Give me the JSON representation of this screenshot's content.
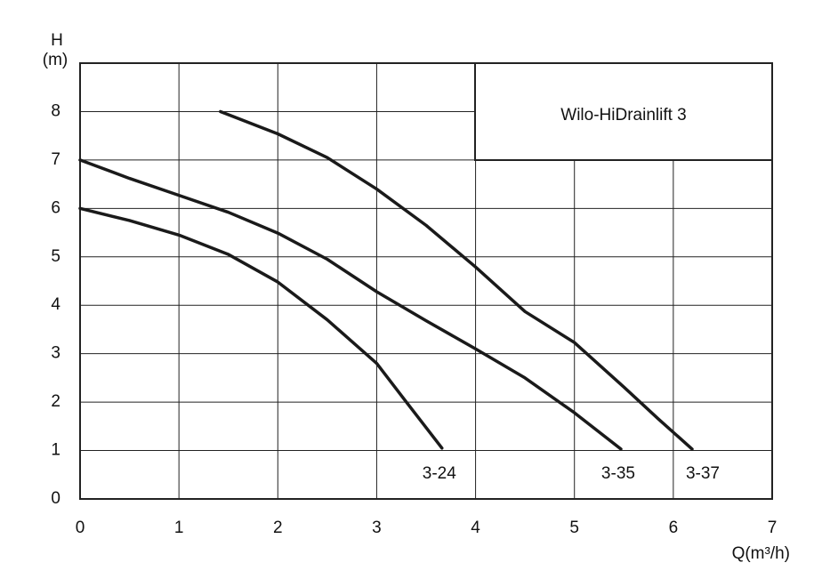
{
  "chart_data": {
    "type": "line",
    "title": "Wilo-HiDrainlift 3",
    "xlabel": "Q(m³/h)",
    "ylabel": [
      "H",
      "(m)"
    ],
    "xlim": [
      0,
      7
    ],
    "xticks": [
      0,
      1,
      2,
      3,
      4,
      5,
      6,
      7
    ],
    "ylim": [
      0,
      9
    ],
    "yticks": [
      0,
      1,
      2,
      3,
      4,
      5,
      6,
      7,
      8
    ],
    "grid": true,
    "series": [
      {
        "name": "3-24",
        "color": "#1a1a1a",
        "x": [
          0,
          0.5,
          1,
          1.5,
          2,
          2.5,
          3,
          3.3,
          3.66
        ],
        "values": [
          6,
          5.75,
          5.45,
          5.05,
          4.48,
          3.7,
          2.8,
          2.0,
          1.05
        ]
      },
      {
        "name": "3-35",
        "color": "#1a1a1a",
        "x": [
          0,
          0.5,
          1,
          1.5,
          2,
          2.5,
          3,
          3.5,
          4,
          4.5,
          5,
          5.47
        ],
        "values": [
          7,
          6.62,
          6.27,
          5.92,
          5.49,
          4.95,
          4.28,
          3.68,
          3.1,
          2.5,
          1.78,
          1.03
        ]
      },
      {
        "name": "3-37",
        "color": "#1a1a1a",
        "x": [
          1.42,
          2,
          2.5,
          3,
          3.5,
          4,
          4.5,
          5,
          5.5,
          5.85,
          6.19
        ],
        "values": [
          8.0,
          7.54,
          7.05,
          6.4,
          5.65,
          4.79,
          3.87,
          3.23,
          2.31,
          1.65,
          1.03
        ]
      }
    ]
  }
}
